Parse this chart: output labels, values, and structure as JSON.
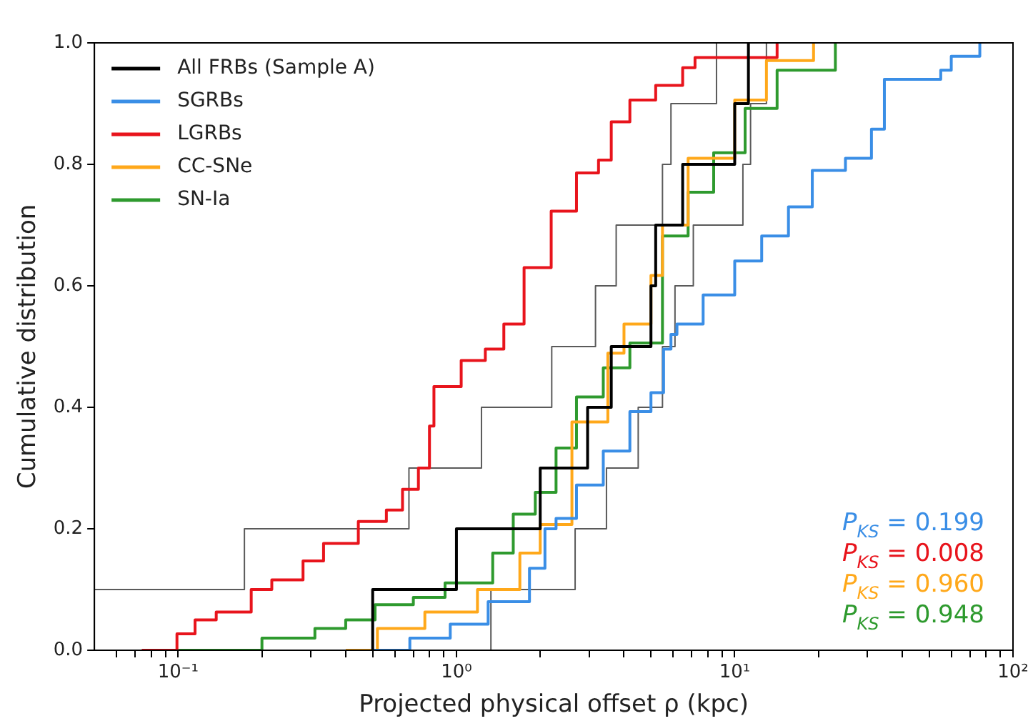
{
  "chart_data": {
    "type": "step",
    "xlabel": "Projected physical offset ρ (kpc)",
    "ylabel": "Cumulative distribution",
    "log": "x",
    "legend": "top left",
    "grid": false,
    "xlim": [
      0.05,
      100
    ],
    "xticks": [
      {
        "value": 0.06,
        "label": null
      },
      {
        "value": 0.07,
        "label": null
      },
      {
        "value": 0.08,
        "label": null
      },
      {
        "value": 0.09,
        "label": null
      },
      {
        "value": 0.1,
        "label": "10⁻¹"
      },
      {
        "value": 0.2,
        "label": null
      },
      {
        "value": 0.3,
        "label": null
      },
      {
        "value": 0.4,
        "label": null
      },
      {
        "value": 0.5,
        "label": null
      },
      {
        "value": 0.6,
        "label": null
      },
      {
        "value": 0.7,
        "label": null
      },
      {
        "value": 0.8,
        "label": null
      },
      {
        "value": 0.9,
        "label": null
      },
      {
        "value": 1,
        "label": "10⁰"
      },
      {
        "value": 2,
        "label": null
      },
      {
        "value": 3,
        "label": null
      },
      {
        "value": 4,
        "label": null
      },
      {
        "value": 5,
        "label": null
      },
      {
        "value": 6,
        "label": null
      },
      {
        "value": 7,
        "label": null
      },
      {
        "value": 8,
        "label": null
      },
      {
        "value": 9,
        "label": null
      },
      {
        "value": 10,
        "label": "10¹"
      },
      {
        "value": 20,
        "label": null
      },
      {
        "value": 30,
        "label": null
      },
      {
        "value": 40,
        "label": null
      },
      {
        "value": 50,
        "label": null
      },
      {
        "value": 60,
        "label": null
      },
      {
        "value": 70,
        "label": null
      },
      {
        "value": 80,
        "label": null
      },
      {
        "value": 90,
        "label": null
      },
      {
        "value": 100,
        "label": "10²"
      }
    ],
    "ylim": [
      0,
      1
    ],
    "yticks": [
      {
        "value": 0,
        "label": "0.0"
      },
      0.2,
      0.4,
      0.6,
      0.8,
      {
        "value": 1,
        "label": "1.0"
      }
    ],
    "series": [
      {
        "name": "All FRBs (Sample A)",
        "color": "#000000",
        "x": [
          0.5,
          0.5,
          1.0,
          2.0,
          2.96,
          3.6,
          5.0,
          5.2,
          6.5,
          10,
          11.2
        ],
        "values": [
          0,
          0.1,
          0.2,
          0.3,
          0.4,
          0.5,
          0.6,
          0.7,
          0.8,
          0.9,
          1.0
        ]
      },
      {
        "name": "SGRBs",
        "color": "#3a8ee6",
        "x": [
          0.5,
          0.68,
          0.95,
          1.3,
          1.83,
          2.08,
          2.28,
          2.7,
          3.37,
          4.2,
          5.0,
          5.55,
          5.9,
          6.2,
          7.7,
          10,
          12.5,
          15.6,
          19,
          25,
          31,
          34.5,
          55,
          60,
          76
        ],
        "values": [
          0,
          0.02,
          0.043,
          0.08,
          0.135,
          0.2,
          0.217,
          0.272,
          0.328,
          0.393,
          0.424,
          0.496,
          0.52,
          0.537,
          0.585,
          0.641,
          0.682,
          0.73,
          0.79,
          0.81,
          0.858,
          0.94,
          0.955,
          0.978,
          1.0
        ]
      },
      {
        "name": "LGRBs",
        "color": "#e8141c",
        "x": [
          0.074,
          0.099,
          0.115,
          0.137,
          0.183,
          0.217,
          0.281,
          0.333,
          0.444,
          0.56,
          0.64,
          0.73,
          0.8,
          0.83,
          1.04,
          1.27,
          1.48,
          1.75,
          2.19,
          2.7,
          3.24,
          3.6,
          4.2,
          5.2,
          6.5,
          7.2,
          14.2
        ],
        "values": [
          0,
          0.027,
          0.05,
          0.063,
          0.1,
          0.116,
          0.147,
          0.176,
          0.212,
          0.231,
          0.265,
          0.3,
          0.369,
          0.434,
          0.477,
          0.496,
          0.537,
          0.63,
          0.723,
          0.786,
          0.807,
          0.87,
          0.906,
          0.93,
          0.959,
          0.976,
          1.0
        ]
      },
      {
        "name": "CC-SNe",
        "color": "#ffa81a",
        "x": [
          0.4,
          0.52,
          0.77,
          1.19,
          1.69,
          2.0,
          2.6,
          3.5,
          4.0,
          5.0,
          5.5,
          6.8,
          10,
          13,
          19.2
        ],
        "values": [
          0,
          0.036,
          0.063,
          0.1,
          0.16,
          0.207,
          0.376,
          0.489,
          0.537,
          0.617,
          0.7,
          0.81,
          0.906,
          0.971,
          1.0
        ]
      },
      {
        "name": "SN-Ia",
        "color": "#2e9a2e",
        "x": [
          0.1,
          0.2,
          0.31,
          0.4,
          0.51,
          0.7,
          0.91,
          1.35,
          1.6,
          1.92,
          2.28,
          2.7,
          3.37,
          4.2,
          5.5,
          6.8,
          8.4,
          10.9,
          14.2,
          23
        ],
        "values": [
          0,
          0.02,
          0.036,
          0.05,
          0.075,
          0.087,
          0.111,
          0.16,
          0.224,
          0.26,
          0.333,
          0.417,
          0.465,
          0.506,
          0.682,
          0.754,
          0.819,
          0.892,
          0.955,
          1.0
        ]
      },
      {
        "color": "#5a5a5a",
        "x": [
          0.05,
          0.173,
          0.675,
          1.23,
          2.2,
          3.16,
          3.75,
          5.5,
          5.9,
          8.6
        ],
        "values": [
          0.1,
          0.2,
          0.3,
          0.4,
          0.5,
          0.6,
          0.7,
          0.8,
          0.9,
          1.0
        ]
      },
      {
        "color": "#5a5a5a",
        "x": [
          1.33,
          1.33,
          2.67,
          3.46,
          4.5,
          5.5,
          6.1,
          7.1,
          10.7,
          11.4,
          13
        ],
        "values": [
          0,
          0.1,
          0.2,
          0.3,
          0.4,
          0.5,
          0.6,
          0.7,
          0.8,
          0.9,
          1.0
        ]
      }
    ],
    "annotations": [
      "P$_{KS}$ = 0.199",
      "P$_{KS}$ = 0.008",
      "P$_{KS}$ = 0.960",
      "P$_{KS}$ = 0.948"
    ]
  }
}
